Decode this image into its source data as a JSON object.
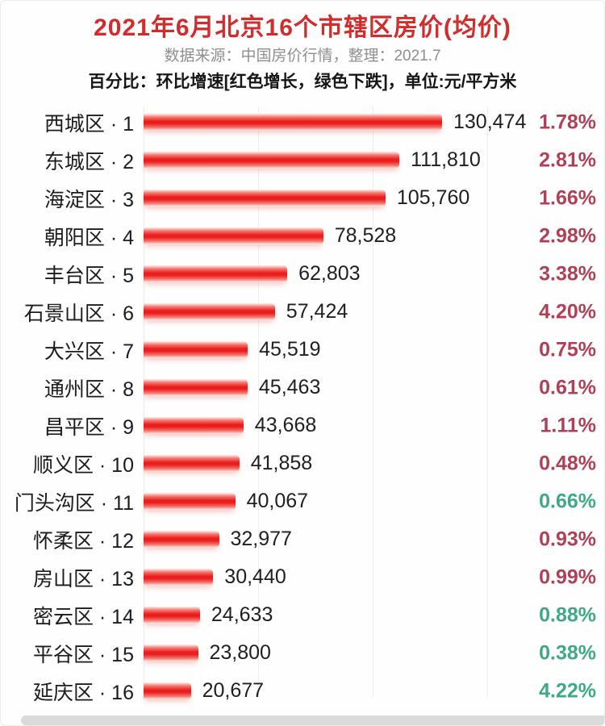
{
  "page": {
    "title": "2021年6月北京16个市辖区房价(均价)",
    "subtitle": "数据来源：中国房价行情，整理：2021.7",
    "note": "百分比：环比增速[红色增长，绿色下跌]，单位:元/平方米"
  },
  "colors": {
    "title_red": "#d22c2c",
    "bar_core": "#ea1e1e",
    "bar_mid": "#f4776e",
    "bar_edge": "#fdeeec",
    "pct_up": "#b04055",
    "pct_down": "#3fa986",
    "text_dark": "#1f1f1f",
    "subtitle_gray": "#8f8f8f"
  },
  "chart_data": {
    "type": "bar",
    "orientation": "horizontal",
    "title": "2021年6月北京16个市辖区房价(均价)",
    "subtitle": "数据来源：中国房价行情，整理：2021.7",
    "note": "百分比：环比增速[红色增长，绿色下跌]，单位:元/平方米",
    "unit": "元/平方米",
    "xlabel": "",
    "ylabel": "",
    "xlim": [
      0,
      130474
    ],
    "grid": "faint-vertical",
    "legend": "none",
    "categories": [
      "西城区 · 1",
      "东城区 · 2",
      "海淀区 · 3",
      "朝阳区 · 4",
      "丰台区 · 5",
      "石景山区 · 6",
      "大兴区 · 7",
      "通州区 · 8",
      "昌平区 · 9",
      "顺义区 · 10",
      "门头沟区 · 11",
      "怀柔区 · 12",
      "房山区 · 13",
      "密云区 · 14",
      "平谷区 · 15",
      "延庆区 · 16"
    ],
    "values": [
      130474,
      111810,
      105760,
      78528,
      62803,
      57424,
      45519,
      45463,
      43668,
      41858,
      40067,
      32977,
      30440,
      24633,
      23800,
      20677
    ],
    "mom_change_pct": [
      1.78,
      2.81,
      1.66,
      2.98,
      3.38,
      4.2,
      0.75,
      0.61,
      1.11,
      0.48,
      -0.66,
      0.93,
      0.99,
      -0.88,
      -0.38,
      -4.22
    ]
  },
  "rows": [
    {
      "rank": 1,
      "district": "西城区",
      "label": "西城区 · 1",
      "price": 130474,
      "price_text": "130,474",
      "change_text": "1.78%",
      "change": "up"
    },
    {
      "rank": 2,
      "district": "东城区",
      "label": "东城区 · 2",
      "price": 111810,
      "price_text": "111,810",
      "change_text": "2.81%",
      "change": "up"
    },
    {
      "rank": 3,
      "district": "海淀区",
      "label": "海淀区 · 3",
      "price": 105760,
      "price_text": "105,760",
      "change_text": "1.66%",
      "change": "up"
    },
    {
      "rank": 4,
      "district": "朝阳区",
      "label": "朝阳区 · 4",
      "price": 78528,
      "price_text": "78,528",
      "change_text": "2.98%",
      "change": "up"
    },
    {
      "rank": 5,
      "district": "丰台区",
      "label": "丰台区 · 5",
      "price": 62803,
      "price_text": "62,803",
      "change_text": "3.38%",
      "change": "up"
    },
    {
      "rank": 6,
      "district": "石景山区",
      "label": "石景山区 · 6",
      "price": 57424,
      "price_text": "57,424",
      "change_text": "4.20%",
      "change": "up"
    },
    {
      "rank": 7,
      "district": "大兴区",
      "label": "大兴区 · 7",
      "price": 45519,
      "price_text": "45,519",
      "change_text": "0.75%",
      "change": "up"
    },
    {
      "rank": 8,
      "district": "通州区",
      "label": "通州区 · 8",
      "price": 45463,
      "price_text": "45,463",
      "change_text": "0.61%",
      "change": "up"
    },
    {
      "rank": 9,
      "district": "昌平区",
      "label": "昌平区 · 9",
      "price": 43668,
      "price_text": "43,668",
      "change_text": "1.11%",
      "change": "up"
    },
    {
      "rank": 10,
      "district": "顺义区",
      "label": "顺义区 · 10",
      "price": 41858,
      "price_text": "41,858",
      "change_text": "0.48%",
      "change": "up"
    },
    {
      "rank": 11,
      "district": "门头沟区",
      "label": "门头沟区 · 11",
      "price": 40067,
      "price_text": "40,067",
      "change_text": "0.66%",
      "change": "down"
    },
    {
      "rank": 12,
      "district": "怀柔区",
      "label": "怀柔区 · 12",
      "price": 32977,
      "price_text": "32,977",
      "change_text": "0.93%",
      "change": "up"
    },
    {
      "rank": 13,
      "district": "房山区",
      "label": "房山区 · 13",
      "price": 30440,
      "price_text": "30,440",
      "change_text": "0.99%",
      "change": "up"
    },
    {
      "rank": 14,
      "district": "密云区",
      "label": "密云区 · 14",
      "price": 24633,
      "price_text": "24,633",
      "change_text": "0.88%",
      "change": "down"
    },
    {
      "rank": 15,
      "district": "平谷区",
      "label": "平谷区 · 15",
      "price": 23800,
      "price_text": "23,800",
      "change_text": "0.38%",
      "change": "down"
    },
    {
      "rank": 16,
      "district": "延庆区",
      "label": "延庆区 · 16",
      "price": 20677,
      "price_text": "20,677",
      "change_text": "4.22%",
      "change": "down"
    }
  ]
}
